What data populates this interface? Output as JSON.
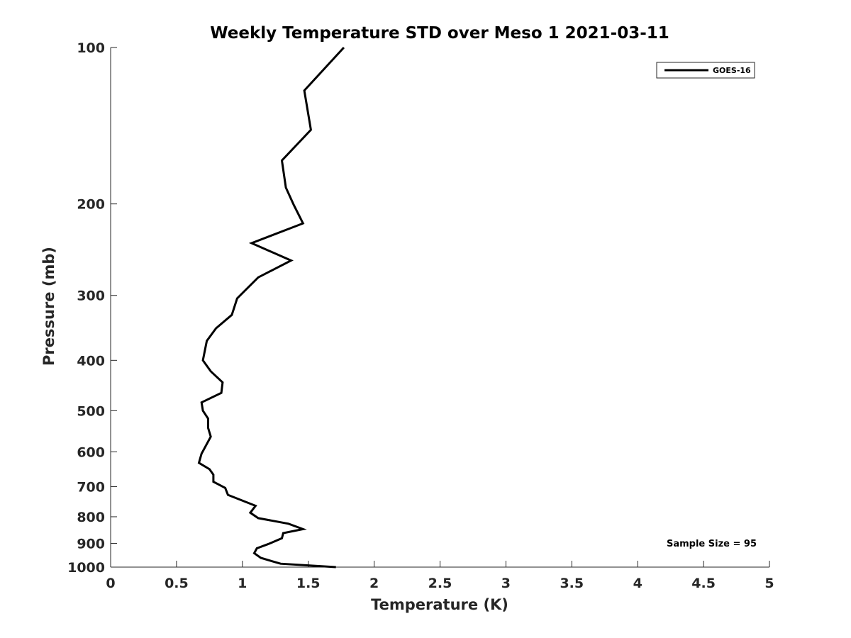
{
  "chart_data": {
    "type": "line",
    "title": "Weekly Temperature STD over Meso 1 2021-03-11",
    "xlabel": "Temperature (K)",
    "ylabel": "Pressure (mb)",
    "xlim": [
      0,
      5
    ],
    "ylim": [
      100,
      1000
    ],
    "y_scale": "log",
    "y_reversed": true,
    "x_ticks": [
      0,
      0.5,
      1,
      1.5,
      2,
      2.5,
      3,
      3.5,
      4,
      4.5,
      5
    ],
    "x_tick_labels": [
      "0",
      "0.5",
      "1",
      "1.5",
      "2",
      "2.5",
      "3",
      "3.5",
      "4",
      "4.5",
      "5"
    ],
    "y_ticks": [
      100,
      200,
      300,
      400,
      500,
      600,
      700,
      800,
      900,
      1000
    ],
    "y_tick_labels": [
      "100",
      "200",
      "300",
      "400",
      "500",
      "600",
      "700",
      "800",
      "900",
      "1000"
    ],
    "grid": false,
    "legend": {
      "position": "top-right",
      "entries": [
        "GOES-16"
      ]
    },
    "annotation": "Sample Size = 95",
    "series": [
      {
        "name": "GOES-16",
        "color": "#000000",
        "points": [
          [
            1.77,
            100
          ],
          [
            1.47,
            121
          ],
          [
            1.52,
            144
          ],
          [
            1.3,
            165
          ],
          [
            1.33,
            186
          ],
          [
            1.39,
            201
          ],
          [
            1.46,
            218
          ],
          [
            1.07,
            238
          ],
          [
            1.37,
            257
          ],
          [
            1.12,
            277
          ],
          [
            0.96,
            304
          ],
          [
            0.92,
            327
          ],
          [
            0.8,
            347
          ],
          [
            0.73,
            367
          ],
          [
            0.7,
            400
          ],
          [
            0.76,
            420
          ],
          [
            0.85,
            441
          ],
          [
            0.84,
            462
          ],
          [
            0.69,
            482
          ],
          [
            0.7,
            500
          ],
          [
            0.74,
            518
          ],
          [
            0.74,
            540
          ],
          [
            0.76,
            561
          ],
          [
            0.69,
            605
          ],
          [
            0.67,
            630
          ],
          [
            0.75,
            648
          ],
          [
            0.78,
            664
          ],
          [
            0.78,
            685
          ],
          [
            0.87,
            704
          ],
          [
            0.89,
            726
          ],
          [
            1.1,
            762
          ],
          [
            1.06,
            786
          ],
          [
            1.12,
            805
          ],
          [
            1.35,
            825
          ],
          [
            1.46,
            845
          ],
          [
            1.31,
            860
          ],
          [
            1.3,
            880
          ],
          [
            1.2,
            902
          ],
          [
            1.11,
            920
          ],
          [
            1.09,
            940
          ],
          [
            1.14,
            960
          ],
          [
            1.29,
            985
          ],
          [
            1.71,
            1000
          ]
        ]
      }
    ]
  }
}
